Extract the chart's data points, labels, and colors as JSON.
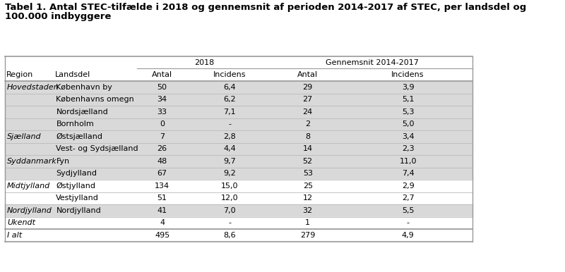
{
  "title_line1": "Tabel 1. Antal STEC-tilfælde i 2018 og gennemsnit af perioden 2014-2017 af STEC, per landsdel og",
  "title_line2": "100.000 indbyggere",
  "rows": [
    {
      "region": "Hovedstaden",
      "landsdel": "København by",
      "a2018": "50",
      "i2018": "6,4",
      "avg": "29",
      "iavg": "3,9"
    },
    {
      "region": "",
      "landsdel": "Københavns omegn",
      "a2018": "34",
      "i2018": "6,2",
      "avg": "27",
      "iavg": "5,1"
    },
    {
      "region": "",
      "landsdel": "Nordsjælland",
      "a2018": "33",
      "i2018": "7,1",
      "avg": "24",
      "iavg": "5,3"
    },
    {
      "region": "",
      "landsdel": "Bornholm",
      "a2018": "0",
      "i2018": "-",
      "avg": "2",
      "iavg": "5,0"
    },
    {
      "region": "Sjælland",
      "landsdel": "Østsjælland",
      "a2018": "7",
      "i2018": "2,8",
      "avg": "8",
      "iavg": "3,4"
    },
    {
      "region": "",
      "landsdel": "Vest- og Sydsjælland",
      "a2018": "26",
      "i2018": "4,4",
      "avg": "14",
      "iavg": "2,3"
    },
    {
      "region": "Syddanmark",
      "landsdel": "Fyn",
      "a2018": "48",
      "i2018": "9,7",
      "avg": "52",
      "iavg": "11,0"
    },
    {
      "region": "",
      "landsdel": "Sydjylland",
      "a2018": "67",
      "i2018": "9,2",
      "avg": "53",
      "iavg": "7,4"
    },
    {
      "region": "Midtjylland",
      "landsdel": "Østjylland",
      "a2018": "134",
      "i2018": "15,0",
      "avg": "25",
      "iavg": "2,9"
    },
    {
      "region": "",
      "landsdel": "Vestjylland",
      "a2018": "51",
      "i2018": "12,0",
      "avg": "12",
      "iavg": "2,7"
    },
    {
      "region": "Nordjylland",
      "landsdel": "Nordjylland",
      "a2018": "41",
      "i2018": "7,0",
      "avg": "32",
      "iavg": "5,5"
    },
    {
      "region": "Ukendt",
      "landsdel": "",
      "a2018": "4",
      "i2018": "-",
      "avg": "1",
      "iavg": "-"
    },
    {
      "region": "I alt",
      "landsdel": "",
      "a2018": "495",
      "i2018": "8,6",
      "avg": "279",
      "iavg": "4,9"
    }
  ],
  "shaded_region_groups": [
    "Hovedstaden",
    "Sjælland",
    "Syddanmark",
    "Nordjylland"
  ],
  "bg_color": "#ffffff",
  "shade_color": "#d9d9d9",
  "border_color": "#999999",
  "thin_line_color": "#bbbbbb",
  "text_color": "#000000"
}
